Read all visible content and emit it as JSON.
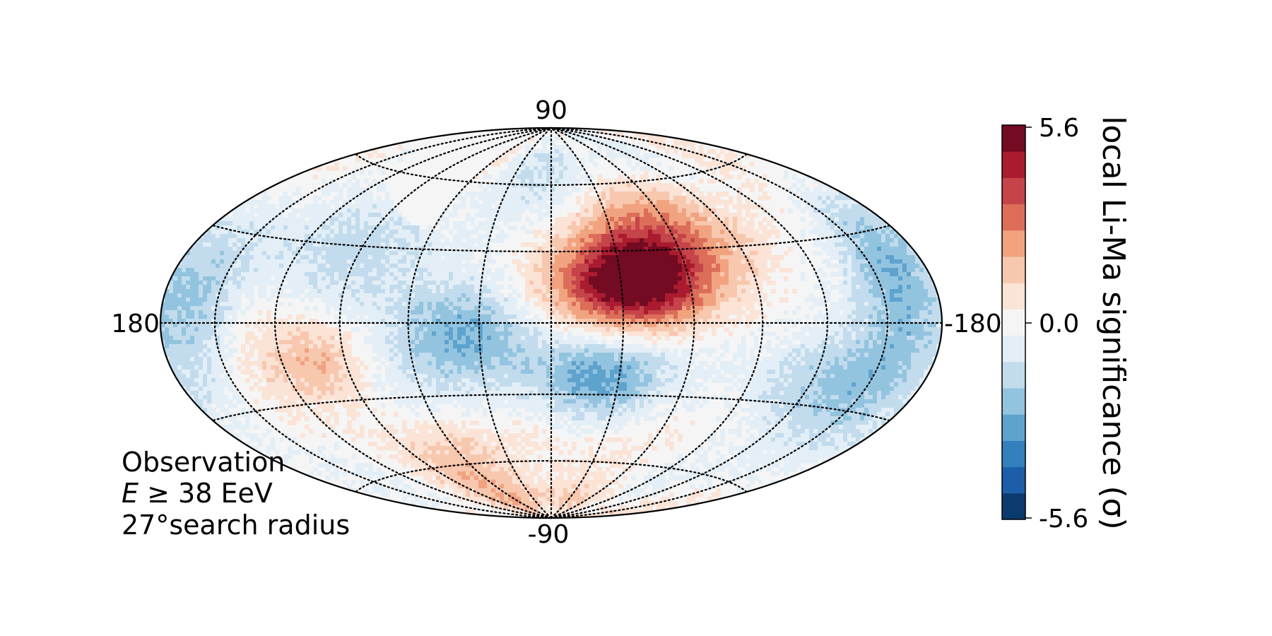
{
  "chart_data": {
    "type": "heatmap",
    "projection": "hammer-aitoff",
    "grid": true,
    "longitude_tick_labels": {
      "left": "180",
      "right": "-180"
    },
    "latitude_tick_labels": {
      "top": "90",
      "bottom": "-90"
    },
    "colorbar": {
      "label": "local Li-Ma significance (σ)",
      "min": -5.6,
      "max": 5.6,
      "tick_labels": [
        "5.6",
        "0.0",
        "-5.6"
      ],
      "levels": 15,
      "colormap": "RdBu_r",
      "colors": [
        "#0b3a6f",
        "#1c5fa8",
        "#3480bd",
        "#5ea3ce",
        "#93c4df",
        "#c2dced",
        "#e3eef6",
        "#f5f5f5",
        "#fbe3d6",
        "#f7c7ae",
        "#f1a380",
        "#dc6e59",
        "#c5444a",
        "#ab1b2f",
        "#730b22"
      ],
      "placement": "right"
    },
    "annotation": {
      "line1": "Observation",
      "line2_var": "E",
      "line2_rest": " ≥ 38 EeV",
      "line3": "27°search radius"
    },
    "features": [
      {
        "lon": -35,
        "lat": 15,
        "peak_sigma": 5.6,
        "sigma_x": 22,
        "sigma_y": 14,
        "note": "hotspot"
      },
      {
        "lon": -55,
        "lat": 35,
        "peak_sigma": 2.3,
        "sigma_x": 28,
        "sigma_y": 18
      },
      {
        "lon": 35,
        "lat": -3,
        "peak_sigma": -3.0,
        "sigma_x": 22,
        "sigma_y": 16
      },
      {
        "lon": -20,
        "lat": -23,
        "peak_sigma": -2.6,
        "sigma_x": 20,
        "sigma_y": 13
      },
      {
        "lon": -125,
        "lat": -22,
        "peak_sigma": -2.4,
        "sigma_x": 30,
        "sigma_y": 14
      },
      {
        "lon": 100,
        "lat": -15,
        "peak_sigma": 1.6,
        "sigma_x": 14,
        "sigma_y": 10
      },
      {
        "lon": 70,
        "lat": -55,
        "peak_sigma": 1.4,
        "sigma_x": 30,
        "sigma_y": 14
      },
      {
        "lon": -160,
        "lat": 15,
        "peak_sigma": -2.0,
        "sigma_x": 15,
        "sigma_y": 25
      },
      {
        "lon": 160,
        "lat": 5,
        "peak_sigma": -1.6,
        "sigma_x": 15,
        "sigma_y": 25
      },
      {
        "lon": 95,
        "lat": 30,
        "peak_sigma": -1.2,
        "sigma_x": 25,
        "sigma_y": 18
      },
      {
        "lon": -10,
        "lat": 70,
        "peak_sigma": -0.8,
        "sigma_x": 40,
        "sigma_y": 12
      },
      {
        "lon": 0,
        "lat": -80,
        "peak_sigma": 1.3,
        "sigma_x": 80,
        "sigma_y": 8
      }
    ],
    "unexposed_region": {
      "lat_above": 45,
      "blanked": true
    }
  }
}
